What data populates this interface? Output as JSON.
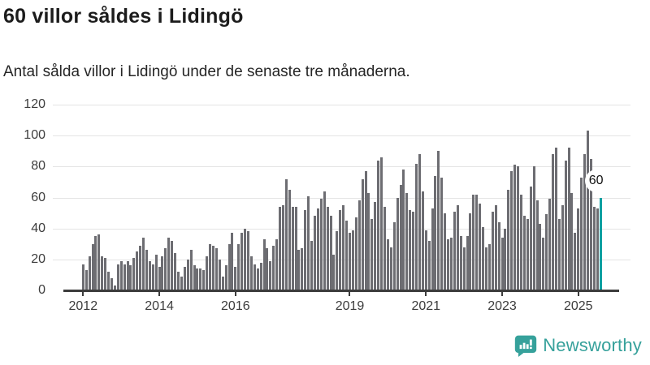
{
  "header": {
    "title": "60 villor såldes i Lidingö",
    "subtitle": "Antal sålda villor i Lidingö under de senaste tre månaderna."
  },
  "footer": {
    "brand": "Newsworthy",
    "logo_icon": "bar-chart-speech-bubble-icon"
  },
  "colors": {
    "bar": "#6d6d72",
    "highlight": "#00a0a1",
    "grid": "#e4e4e4",
    "axis": "#3c3c3c",
    "title_text": "#1c1c1c",
    "brand": "#36a19b",
    "annotation_bg": "#ffffff"
  },
  "chart_data": {
    "type": "bar",
    "title": "60 villor såldes i Lidingö",
    "subtitle": "Antal sålda villor i Lidingö under de senaste tre månaderna.",
    "xlabel": "",
    "ylabel": "",
    "ylim": [
      0,
      120
    ],
    "grid": true,
    "yticks": [
      0,
      20,
      40,
      60,
      80,
      100,
      120
    ],
    "xtick_labels": [
      "2012",
      "2014",
      "2016",
      "2019",
      "2021",
      "2023",
      "2025"
    ],
    "x_start_month": "2012-01",
    "x_end_month": "2025-08",
    "unit": "sålda villor per månad",
    "highlight_last": true,
    "annotation": {
      "text": "60",
      "applies_to": "last-bar"
    },
    "values": [
      17,
      13,
      22,
      30,
      35,
      36,
      22,
      21,
      12,
      8,
      3,
      17,
      19,
      17,
      19,
      16,
      21,
      25,
      29,
      34,
      26,
      19,
      17,
      23,
      15,
      22,
      27,
      34,
      32,
      24,
      12,
      9,
      15,
      20,
      26,
      16,
      14,
      14,
      13,
      22,
      30,
      29,
      27,
      20,
      9,
      16,
      30,
      37,
      15,
      30,
      37,
      40,
      38,
      22,
      17,
      14,
      18,
      33,
      27,
      19,
      29,
      33,
      54,
      55,
      72,
      65,
      54,
      54,
      26,
      27,
      52,
      61,
      32,
      48,
      53,
      59,
      64,
      54,
      48,
      23,
      38,
      52,
      55,
      45,
      37,
      39,
      47,
      58,
      72,
      77,
      63,
      46,
      57,
      84,
      86,
      54,
      33,
      28,
      44,
      60,
      68,
      78,
      63,
      52,
      51,
      82,
      88,
      64,
      39,
      32,
      53,
      74,
      90,
      73,
      50,
      33,
      34,
      51,
      55,
      35,
      28,
      35,
      50,
      62,
      62,
      56,
      41,
      28,
      30,
      51,
      55,
      44,
      34,
      40,
      65,
      77,
      81,
      80,
      62,
      48,
      46,
      67,
      80,
      58,
      43,
      34,
      49,
      59,
      88,
      92,
      46,
      55,
      84,
      92,
      63,
      37,
      53,
      73,
      88,
      103,
      85,
      54,
      53,
      60
    ]
  }
}
